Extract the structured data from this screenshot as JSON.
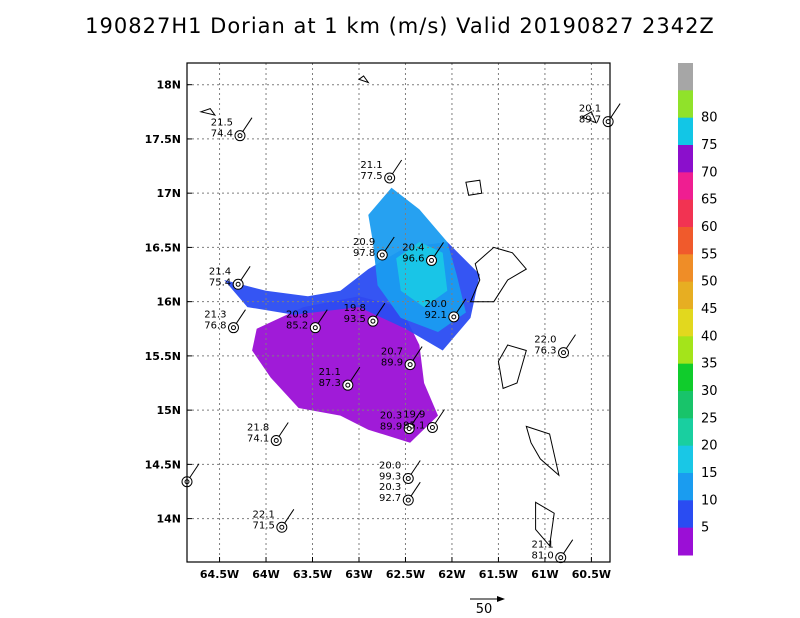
{
  "title": "190827H1 Dorian at 1 km (m/s) Valid 20190827 2342Z",
  "chart_data": {
    "type": "heatmap",
    "title": "190827H1 Dorian at 1 km (m/s) Valid 20190827 2342Z",
    "x_ticks": [
      {
        "value": -64.5,
        "label": "64.5W"
      },
      {
        "value": -64.0,
        "label": "64W"
      },
      {
        "value": -63.5,
        "label": "63.5W"
      },
      {
        "value": -63.0,
        "label": "63W"
      },
      {
        "value": -62.5,
        "label": "62.5W"
      },
      {
        "value": -62.0,
        "label": "62W"
      },
      {
        "value": -61.5,
        "label": "61.5W"
      },
      {
        "value": -61.0,
        "label": "61W"
      },
      {
        "value": -60.5,
        "label": "60.5W"
      }
    ],
    "y_ticks": [
      {
        "value": 14.0,
        "label": "14N"
      },
      {
        "value": 14.5,
        "label": "14.5N"
      },
      {
        "value": 15.0,
        "label": "15N"
      },
      {
        "value": 15.5,
        "label": "15.5N"
      },
      {
        "value": 16.0,
        "label": "16N"
      },
      {
        "value": 16.5,
        "label": "16.5N"
      },
      {
        "value": 17.0,
        "label": "17N"
      },
      {
        "value": 17.5,
        "label": "17.5N"
      },
      {
        "value": 18.0,
        "label": "18N"
      }
    ],
    "xlim": [
      -64.85,
      -60.3
    ],
    "ylim": [
      13.6,
      18.2
    ],
    "grid": true,
    "colorbar": {
      "levels": [
        "5",
        "10",
        "15",
        "20",
        "25",
        "30",
        "35",
        "40",
        "45",
        "50",
        "55",
        "60",
        "65",
        "70",
        "75",
        "80"
      ],
      "colors": [
        "#9b0fd6",
        "#2a4cf2",
        "#1a9cf0",
        "#19c7e6",
        "#19cfa0",
        "#18c46a",
        "#10cc2c",
        "#a4e41a",
        "#e2d81e",
        "#e7ae22",
        "#ef8d27",
        "#f05a2c",
        "#f23352",
        "#ef1e91",
        "#8b0fcc",
        "#12c6e6",
        "#90e22a",
        "#a6a6a6"
      ]
    },
    "stations": [
      {
        "lon": -64.28,
        "lat": 17.53,
        "t": "21.5",
        "p": "74.4"
      },
      {
        "lon": -60.32,
        "lat": 17.66,
        "t": "20.1",
        "p": "89.7"
      },
      {
        "lon": -62.67,
        "lat": 17.14,
        "t": "21.1",
        "p": "77.5"
      },
      {
        "lon": -62.75,
        "lat": 16.43,
        "t": "20.9",
        "p": "97.8"
      },
      {
        "lon": -62.22,
        "lat": 16.38,
        "t": "20.4",
        "p": "96.6"
      },
      {
        "lon": -64.3,
        "lat": 16.16,
        "t": "21.4",
        "p": "75.4"
      },
      {
        "lon": -64.35,
        "lat": 15.76,
        "t": "21.3",
        "p": "76.8"
      },
      {
        "lon": -63.47,
        "lat": 15.76,
        "t": "20.8",
        "p": "85.2"
      },
      {
        "lon": -62.85,
        "lat": 15.82,
        "t": "19.8",
        "p": "93.5"
      },
      {
        "lon": -61.98,
        "lat": 15.86,
        "t": "20.0",
        "p": "92.1"
      },
      {
        "lon": -60.8,
        "lat": 15.53,
        "t": "22.0",
        "p": "76.3"
      },
      {
        "lon": -62.45,
        "lat": 15.42,
        "t": "20.7",
        "p": "89.9"
      },
      {
        "lon": -63.12,
        "lat": 15.23,
        "t": "21.1",
        "p": "87.3"
      },
      {
        "lon": -62.46,
        "lat": 14.83,
        "t": "20.3",
        "p": "89.9"
      },
      {
        "lon": -62.21,
        "lat": 14.84,
        "t": "19.9",
        "p": "95.1"
      },
      {
        "lon": -63.89,
        "lat": 14.72,
        "t": "21.8",
        "p": "74.1"
      },
      {
        "lon": -64.85,
        "lat": 14.34,
        "t": "",
        "p": ""
      },
      {
        "lon": -62.47,
        "lat": 14.37,
        "t": "20.0",
        "p": "99.3"
      },
      {
        "lon": -62.47,
        "lat": 14.17,
        "t": "20.3",
        "p": "92.7"
      },
      {
        "lon": -63.83,
        "lat": 13.92,
        "t": "22.1",
        "p": "71.5"
      },
      {
        "lon": -60.83,
        "lat": 13.64,
        "t": "21.1",
        "p": "81.0"
      }
    ]
  },
  "reference_vector": {
    "label": "50"
  }
}
